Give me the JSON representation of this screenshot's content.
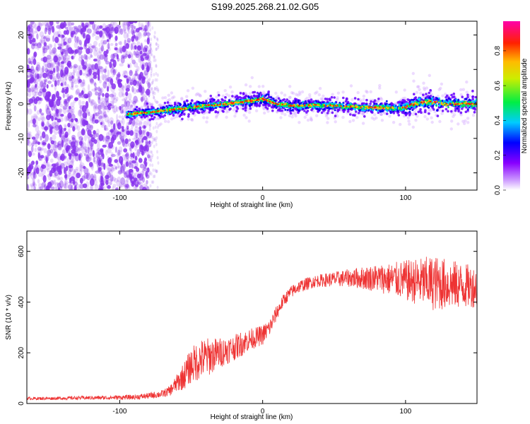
{
  "title": "S199.2025.268.21.02.G05",
  "colors": {
    "snr_line": "#ee3333",
    "spectrogram_noise": "#8833ee",
    "axis": "#000000"
  },
  "chart_data": [
    {
      "type": "heatmap",
      "title": "S199.2025.268.21.02.G05",
      "xlabel": "Height of straight line (km)",
      "ylabel": "Frequency (Hz)",
      "xlim": [
        -165,
        150
      ],
      "ylim": [
        -25,
        24
      ],
      "xticks": [
        -100,
        0,
        100
      ],
      "yticks": [
        -20,
        -10,
        0,
        10,
        20
      ],
      "colorbar": {
        "label": "Normalized spectral amplitude",
        "range": [
          0,
          0.97
        ],
        "ticks": [
          0.0,
          0.2,
          0.4,
          0.6,
          0.8
        ],
        "colormap": "rainbow (white-purple-blue-cyan-green-yellow-orange-red-magenta)"
      },
      "noise_region_x": [
        -165,
        -79
      ],
      "signal_trace": {
        "x": [
          -95,
          -80,
          -70,
          -60,
          -50,
          -40,
          -30,
          -20,
          -10,
          0,
          10,
          20,
          30,
          40,
          50,
          60,
          70,
          80,
          90,
          100,
          110,
          120,
          130,
          140,
          150
        ],
        "frequency": [
          -3,
          -2.5,
          -2,
          -1.5,
          -1,
          -0.5,
          -0.2,
          0.3,
          0.8,
          1.5,
          0,
          -0.5,
          -0.5,
          -0.3,
          -0.5,
          -0.8,
          -1,
          -1,
          -1.2,
          -1,
          0.5,
          0.5,
          0,
          0,
          0
        ]
      }
    },
    {
      "type": "line",
      "xlabel": "Height of straight line (km)",
      "ylabel": "SNR (10 * v/v)",
      "xlim": [
        -165,
        150
      ],
      "ylim": [
        0,
        680
      ],
      "xticks": [
        -100,
        0,
        100
      ],
      "yticks": [
        0,
        200,
        400,
        600
      ],
      "series": [
        {
          "x": [
            -165,
            -150,
            -130,
            -110,
            -90,
            -80,
            -70,
            -65,
            -60,
            -55,
            -50,
            -45,
            -40,
            -35,
            -30,
            -25,
            -20,
            -15,
            -10,
            -5,
            0,
            5,
            10,
            15,
            20,
            25,
            30,
            35,
            40,
            50,
            60,
            70,
            80,
            90,
            100,
            110,
            120,
            130,
            140,
            150
          ],
          "values": [
            20,
            20,
            22,
            23,
            25,
            30,
            38,
            50,
            80,
            110,
            150,
            170,
            180,
            190,
            200,
            210,
            220,
            235,
            250,
            260,
            270,
            300,
            360,
            410,
            440,
            460,
            470,
            480,
            485,
            490,
            495,
            495,
            495,
            490,
            485,
            480,
            475,
            470,
            465,
            460
          ],
          "noise": [
            6,
            6,
            7,
            8,
            10,
            12,
            15,
            20,
            35,
            55,
            70,
            80,
            80,
            70,
            60,
            55,
            50,
            50,
            45,
            40,
            40,
            35,
            30,
            25,
            25,
            25,
            25,
            25,
            25,
            30,
            35,
            45,
            55,
            65,
            80,
            95,
            110,
            100,
            90,
            80
          ]
        }
      ]
    }
  ]
}
